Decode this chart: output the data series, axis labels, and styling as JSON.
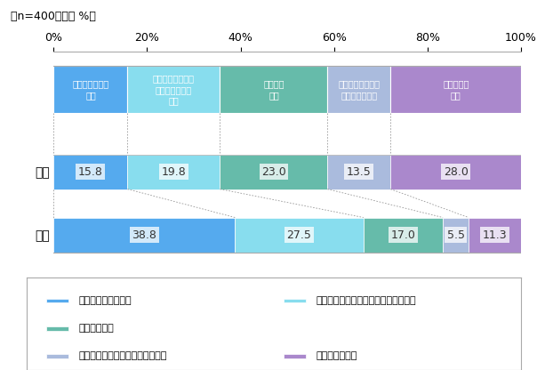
{
  "title": "（n=400、単位 %）",
  "categories": [
    "本人",
    "会社"
  ],
  "segments": [
    {
      "label": "新規顧客獲得を重視",
      "color": "#55AAEE",
      "values": [
        15.8,
        38.8
      ]
    },
    {
      "label": "どちらかというと新規顧客獲得を重視",
      "color": "#88DDEE",
      "values": [
        19.8,
        27.5
      ]
    },
    {
      "label": "どちらも重視",
      "color": "#66BBAA",
      "values": [
        23.0,
        17.0
      ]
    },
    {
      "label": "どちらかというと既存顧客を重視",
      "color": "#AABBDD",
      "values": [
        13.5,
        5.5
      ]
    },
    {
      "label": "既存顧客を重視",
      "color": "#AA88CC",
      "values": [
        28.0,
        11.3
      ]
    }
  ],
  "header_labels": [
    "新規顧客獲得を\n重視",
    "どちらかというと\n新規顧客獲得を\n重視",
    "どちらも\n重視",
    "どちらかというと\n既存顧客を重視",
    "既存顧客を\n重視"
  ],
  "xticks": [
    0,
    20,
    40,
    60,
    80,
    100
  ],
  "xtick_labels": [
    "0%",
    "20%",
    "40%",
    "60%",
    "80%",
    "100%"
  ],
  "background_color": "#FFFFFF",
  "bar_height": 0.55,
  "dotted_line_color": "#999999",
  "value_label_fontsize": 9,
  "category_fontsize": 10,
  "header_fontsize": 7,
  "legend_fontsize": 8
}
